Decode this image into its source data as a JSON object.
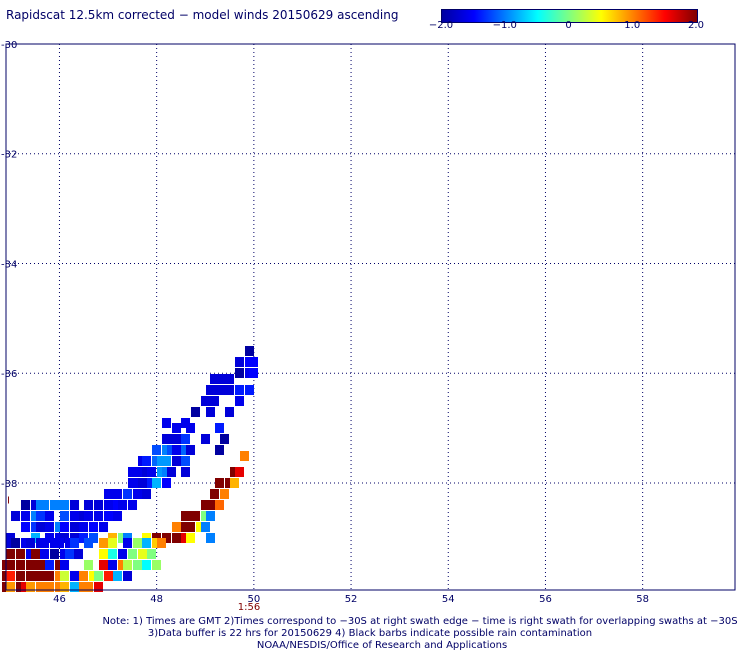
{
  "title": "Rapidscat 12.5km corrected − model winds 20150629 ascending",
  "colorbar": {
    "labels": [
      "−2.0",
      "−1.0",
      "0",
      "1.0",
      "2.0"
    ],
    "values": [
      -2.0,
      -1.0,
      0,
      1.0,
      2.0
    ],
    "range": [
      -2.0,
      2.0
    ],
    "colors": [
      "#0000a0",
      "#0000ff",
      "#0080ff",
      "#00ffff",
      "#80ff80",
      "#ffff00",
      "#ff8000",
      "#ff0000",
      "#800000"
    ]
  },
  "map": {
    "lon_range": [
      44.9,
      59.9
    ],
    "lat_range": [
      -39.95,
      -30.0
    ],
    "lon_ticks": [
      46,
      48,
      50,
      52,
      54,
      56,
      58
    ],
    "lon_tick_labels": [
      "46",
      "48",
      "50",
      "52",
      "54",
      "56",
      "58"
    ],
    "lat_ticks": [
      -30,
      -32,
      -34,
      -36,
      -38
    ],
    "lat_tick_labels": [
      "-30",
      "-32",
      "-34",
      "-36",
      "-38"
    ],
    "grid": "dotted",
    "time_annotation": {
      "text": "1:56",
      "lon": 49.9
    },
    "left_edge_marker": {
      "text": "I",
      "lat": -38.3
    }
  },
  "chart_data": {
    "type": "heatmap",
    "title": "Rapidscat 12.5km corrected − model winds 20150629 ascending",
    "xlabel": "",
    "ylabel": "",
    "xlim": [
      44.9,
      59.9
    ],
    "ylim": [
      -39.95,
      -30.0
    ],
    "value_range": [
      -2.0,
      2.0
    ],
    "cells": [
      [
        49.9,
        -35.6,
        -2.0
      ],
      [
        49.9,
        -35.8,
        -1.5
      ],
      [
        49.7,
        -35.8,
        -1.7
      ],
      [
        50.0,
        -35.8,
        -1.5
      ],
      [
        49.7,
        -36.0,
        -2.0
      ],
      [
        49.9,
        -36.0,
        -1.6
      ],
      [
        50.0,
        -36.0,
        -1.5
      ],
      [
        49.5,
        -36.1,
        -1.7
      ],
      [
        49.4,
        -36.1,
        -1.7
      ],
      [
        49.3,
        -36.1,
        -1.7
      ],
      [
        49.2,
        -36.1,
        -1.7
      ],
      [
        49.5,
        -36.3,
        -1.7
      ],
      [
        49.4,
        -36.3,
        -1.7
      ],
      [
        49.3,
        -36.3,
        -1.7
      ],
      [
        49.1,
        -36.3,
        -1.7
      ],
      [
        49.7,
        -36.3,
        -1.4
      ],
      [
        49.9,
        -36.3,
        -1.4
      ],
      [
        49.2,
        -36.5,
        -1.7
      ],
      [
        49.0,
        -36.5,
        -1.7
      ],
      [
        49.7,
        -36.5,
        -1.6
      ],
      [
        48.8,
        -36.7,
        -2.0
      ],
      [
        49.1,
        -36.7,
        -1.7
      ],
      [
        49.5,
        -36.7,
        -1.7
      ],
      [
        48.2,
        -36.9,
        -1.6
      ],
      [
        48.6,
        -36.9,
        -1.6
      ],
      [
        48.4,
        -37.0,
        -1.6
      ],
      [
        48.7,
        -37.0,
        -1.6
      ],
      [
        49.3,
        -37.0,
        -1.4
      ],
      [
        48.2,
        -37.2,
        -1.7
      ],
      [
        48.3,
        -37.2,
        -1.7
      ],
      [
        48.5,
        -37.2,
        -1.7
      ],
      [
        48.6,
        -37.2,
        -1.3
      ],
      [
        49.0,
        -37.2,
        -1.7
      ],
      [
        49.4,
        -37.2,
        -2.0
      ],
      [
        48.0,
        -37.4,
        -1.2
      ],
      [
        48.2,
        -37.4,
        -1.0
      ],
      [
        48.3,
        -37.4,
        -1.2
      ],
      [
        48.4,
        -37.4,
        -1.6
      ],
      [
        48.6,
        -37.4,
        -1.1
      ],
      [
        48.7,
        -37.4,
        -1.7
      ],
      [
        49.3,
        -37.4,
        -2.0
      ],
      [
        49.8,
        -37.5,
        1.0
      ],
      [
        47.7,
        -37.6,
        -1.6
      ],
      [
        47.8,
        -37.6,
        -1.4
      ],
      [
        48.0,
        -37.6,
        -1.1
      ],
      [
        48.1,
        -37.6,
        -0.9
      ],
      [
        48.2,
        -37.6,
        -0.9
      ],
      [
        48.4,
        -37.6,
        -1.7
      ],
      [
        48.6,
        -37.6,
        -1.2
      ],
      [
        47.5,
        -37.8,
        -1.6
      ],
      [
        47.6,
        -37.8,
        -1.6
      ],
      [
        47.8,
        -37.8,
        -1.7
      ],
      [
        47.9,
        -37.8,
        -1.6
      ],
      [
        48.1,
        -37.8,
        -0.9
      ],
      [
        48.2,
        -37.8,
        -1.0
      ],
      [
        48.3,
        -37.8,
        -1.7
      ],
      [
        48.6,
        -37.8,
        -1.7
      ],
      [
        49.6,
        -37.8,
        2.0
      ],
      [
        49.7,
        -37.8,
        1.6
      ],
      [
        47.5,
        -38.0,
        -1.6
      ],
      [
        47.6,
        -38.0,
        -1.6
      ],
      [
        47.7,
        -38.0,
        -1.7
      ],
      [
        47.9,
        -38.0,
        -1.4
      ],
      [
        48.0,
        -38.0,
        -0.8
      ],
      [
        48.2,
        -38.0,
        -1.5
      ],
      [
        49.3,
        -38.0,
        2.0
      ],
      [
        49.5,
        -38.0,
        2.0
      ],
      [
        49.6,
        -38.0,
        0.8
      ],
      [
        47.0,
        -38.2,
        -1.6
      ],
      [
        47.2,
        -38.2,
        -1.6
      ],
      [
        47.4,
        -38.2,
        -1.3
      ],
      [
        47.6,
        -38.2,
        -1.6
      ],
      [
        47.8,
        -38.2,
        -1.7
      ],
      [
        49.2,
        -38.2,
        2.0
      ],
      [
        49.4,
        -38.2,
        1.0
      ],
      [
        45.3,
        -38.4,
        -2.0
      ],
      [
        45.5,
        -38.4,
        -1.7
      ],
      [
        45.6,
        -38.4,
        -1.0
      ],
      [
        45.7,
        -38.4,
        -1.0
      ],
      [
        45.9,
        -38.4,
        -1.0
      ],
      [
        46.0,
        -38.4,
        -1.0
      ],
      [
        46.1,
        -38.4,
        -1.0
      ],
      [
        46.3,
        -38.4,
        -1.7
      ],
      [
        46.6,
        -38.4,
        -1.7
      ],
      [
        46.8,
        -38.4,
        -1.7
      ],
      [
        47.0,
        -38.4,
        -1.6
      ],
      [
        47.2,
        -38.4,
        -1.5
      ],
      [
        47.3,
        -38.4,
        -1.6
      ],
      [
        47.5,
        -38.4,
        -1.6
      ],
      [
        49.0,
        -38.4,
        2.0
      ],
      [
        49.2,
        -38.4,
        2.0
      ],
      [
        49.3,
        -38.4,
        1.1
      ],
      [
        45.1,
        -38.6,
        -1.7
      ],
      [
        45.3,
        -38.6,
        -1.6
      ],
      [
        45.5,
        -38.6,
        -1.0
      ],
      [
        45.6,
        -38.6,
        -1.3
      ],
      [
        45.8,
        -38.6,
        -1.6
      ],
      [
        46.1,
        -38.6,
        -1.2
      ],
      [
        46.3,
        -38.6,
        -1.6
      ],
      [
        46.5,
        -38.6,
        -1.7
      ],
      [
        46.6,
        -38.6,
        -1.6
      ],
      [
        46.8,
        -38.6,
        -1.6
      ],
      [
        47.0,
        -38.6,
        -1.5
      ],
      [
        47.2,
        -38.6,
        -1.6
      ],
      [
        48.6,
        -38.6,
        2.0
      ],
      [
        48.7,
        -38.6,
        2.0
      ],
      [
        48.8,
        -38.6,
        2.0
      ],
      [
        49.0,
        -38.6,
        0.0
      ],
      [
        49.1,
        -38.6,
        -1.0
      ],
      [
        45.3,
        -38.8,
        -1.5
      ],
      [
        45.5,
        -38.8,
        -1.3
      ],
      [
        45.6,
        -38.8,
        -1.7
      ],
      [
        45.8,
        -38.8,
        -1.6
      ],
      [
        46.0,
        -38.8,
        -1.0
      ],
      [
        46.1,
        -38.8,
        -1.5
      ],
      [
        46.3,
        -38.8,
        -1.7
      ],
      [
        46.5,
        -38.8,
        -1.6
      ],
      [
        46.7,
        -38.8,
        -1.5
      ],
      [
        46.9,
        -38.8,
        -1.6
      ],
      [
        48.4,
        -38.8,
        1.0
      ],
      [
        48.6,
        -38.8,
        2.0
      ],
      [
        48.7,
        -38.8,
        2.0
      ],
      [
        48.9,
        -38.8,
        0.5
      ],
      [
        49.0,
        -38.8,
        -1.0
      ],
      [
        45.0,
        -39.0,
        -1.7
      ],
      [
        45.5,
        -39.0,
        -0.8
      ],
      [
        45.8,
        -39.0,
        -1.6
      ],
      [
        46.0,
        -39.0,
        -1.6
      ],
      [
        46.1,
        -39.0,
        -1.7
      ],
      [
        46.3,
        -39.0,
        -1.7
      ],
      [
        46.5,
        -39.0,
        -1.4
      ],
      [
        46.7,
        -39.0,
        -1.2
      ],
      [
        47.1,
        -39.0,
        0.8
      ],
      [
        47.3,
        -39.0,
        0.0
      ],
      [
        47.4,
        -39.0,
        -1.0
      ],
      [
        47.8,
        -39.0,
        0.5
      ],
      [
        48.0,
        -39.0,
        2.0
      ],
      [
        48.2,
        -39.0,
        2.0
      ],
      [
        48.4,
        -39.0,
        2.0
      ],
      [
        48.6,
        -39.0,
        1.6
      ],
      [
        48.7,
        -39.0,
        0.5
      ],
      [
        49.1,
        -39.0,
        -1.0
      ],
      [
        45.0,
        -39.1,
        -1.7
      ],
      [
        45.1,
        -39.1,
        -2.0
      ],
      [
        45.3,
        -39.1,
        -1.6
      ],
      [
        45.4,
        -39.1,
        -1.7
      ],
      [
        45.6,
        -39.1,
        -1.7
      ],
      [
        45.7,
        -39.1,
        -1.6
      ],
      [
        45.9,
        -39.1,
        -1.6
      ],
      [
        46.0,
        -39.1,
        -1.6
      ],
      [
        46.2,
        -39.1,
        -1.6
      ],
      [
        46.3,
        -39.1,
        -1.3
      ],
      [
        46.6,
        -39.1,
        -1.2
      ],
      [
        46.9,
        -39.1,
        0.9
      ],
      [
        47.1,
        -39.1,
        0.4
      ],
      [
        47.4,
        -39.1,
        -1.6
      ],
      [
        47.6,
        -39.1,
        0.1
      ],
      [
        47.8,
        -39.1,
        -0.8
      ],
      [
        48.0,
        -39.1,
        0.7
      ],
      [
        48.1,
        -39.1,
        1.0
      ],
      [
        45.0,
        -39.3,
        2.0
      ],
      [
        45.2,
        -39.3,
        2.0
      ],
      [
        45.4,
        -39.3,
        -1.6
      ],
      [
        45.5,
        -39.3,
        2.0
      ],
      [
        45.7,
        -39.3,
        -1.6
      ],
      [
        45.9,
        -39.3,
        -2.0
      ],
      [
        46.1,
        -39.3,
        -1.6
      ],
      [
        46.2,
        -39.3,
        -1.3
      ],
      [
        46.4,
        -39.3,
        -1.7
      ],
      [
        46.9,
        -39.3,
        0.5
      ],
      [
        47.1,
        -39.3,
        -0.4
      ],
      [
        47.3,
        -39.3,
        -1.6
      ],
      [
        47.5,
        -39.3,
        0.0
      ],
      [
        47.7,
        -39.3,
        0.4
      ],
      [
        47.9,
        -39.3,
        0.0
      ],
      [
        44.9,
        -39.5,
        2.0
      ],
      [
        45.0,
        -39.5,
        2.0
      ],
      [
        45.2,
        -39.5,
        2.0
      ],
      [
        45.4,
        -39.5,
        2.0
      ],
      [
        45.5,
        -39.5,
        2.0
      ],
      [
        45.6,
        -39.5,
        2.0
      ],
      [
        45.7,
        -39.5,
        2.0
      ],
      [
        45.8,
        -39.5,
        -1.4
      ],
      [
        46.0,
        -39.5,
        2.0
      ],
      [
        46.1,
        -39.5,
        -1.6
      ],
      [
        46.6,
        -39.5,
        0.1
      ],
      [
        46.9,
        -39.5,
        1.6
      ],
      [
        47.1,
        -39.5,
        -1.6
      ],
      [
        47.3,
        -39.5,
        1.0
      ],
      [
        47.4,
        -39.5,
        0.2
      ],
      [
        47.6,
        -39.5,
        0.0
      ],
      [
        47.8,
        -39.5,
        -0.5
      ],
      [
        48.0,
        -39.5,
        0.1
      ],
      [
        44.9,
        -39.7,
        2.0
      ],
      [
        45.0,
        -39.7,
        1.4
      ],
      [
        45.2,
        -39.7,
        2.0
      ],
      [
        45.4,
        -39.7,
        2.0
      ],
      [
        45.5,
        -39.7,
        2.0
      ],
      [
        45.7,
        -39.7,
        2.0
      ],
      [
        45.8,
        -39.7,
        2.0
      ],
      [
        46.0,
        -39.7,
        1.0
      ],
      [
        46.1,
        -39.7,
        0.3
      ],
      [
        46.3,
        -39.7,
        -1.6
      ],
      [
        46.5,
        -39.7,
        1.0
      ],
      [
        46.7,
        -39.7,
        0.5
      ],
      [
        46.8,
        -39.7,
        0.0
      ],
      [
        47.0,
        -39.7,
        1.4
      ],
      [
        47.2,
        -39.7,
        -0.8
      ],
      [
        47.4,
        -39.7,
        -1.7
      ],
      [
        44.9,
        -39.9,
        2.0
      ],
      [
        45.0,
        -39.9,
        0.9
      ],
      [
        45.2,
        -39.9,
        2.0
      ],
      [
        45.3,
        -39.9,
        1.6
      ],
      [
        45.4,
        -39.9,
        0.9
      ],
      [
        45.6,
        -39.9,
        1.0
      ],
      [
        45.8,
        -39.9,
        1.0
      ],
      [
        46.0,
        -39.9,
        1.0
      ],
      [
        46.1,
        -39.9,
        0.8
      ],
      [
        46.3,
        -39.9,
        -0.8
      ],
      [
        46.5,
        -39.9,
        1.0
      ],
      [
        46.6,
        -39.9,
        1.0
      ],
      [
        46.8,
        -39.9,
        1.6
      ]
    ]
  },
  "footer": {
    "line1": "Note: 1) Times are GMT 2)Times correspond to −30S at right swath edge − time is right swath for overlapping swaths at −30S",
    "line2": "3)Data buffer is 22 hrs for 20150629 4) Black barbs indicate possible rain contamination",
    "line3": "NOAA/NESDIS/Office of Research and Applications"
  }
}
